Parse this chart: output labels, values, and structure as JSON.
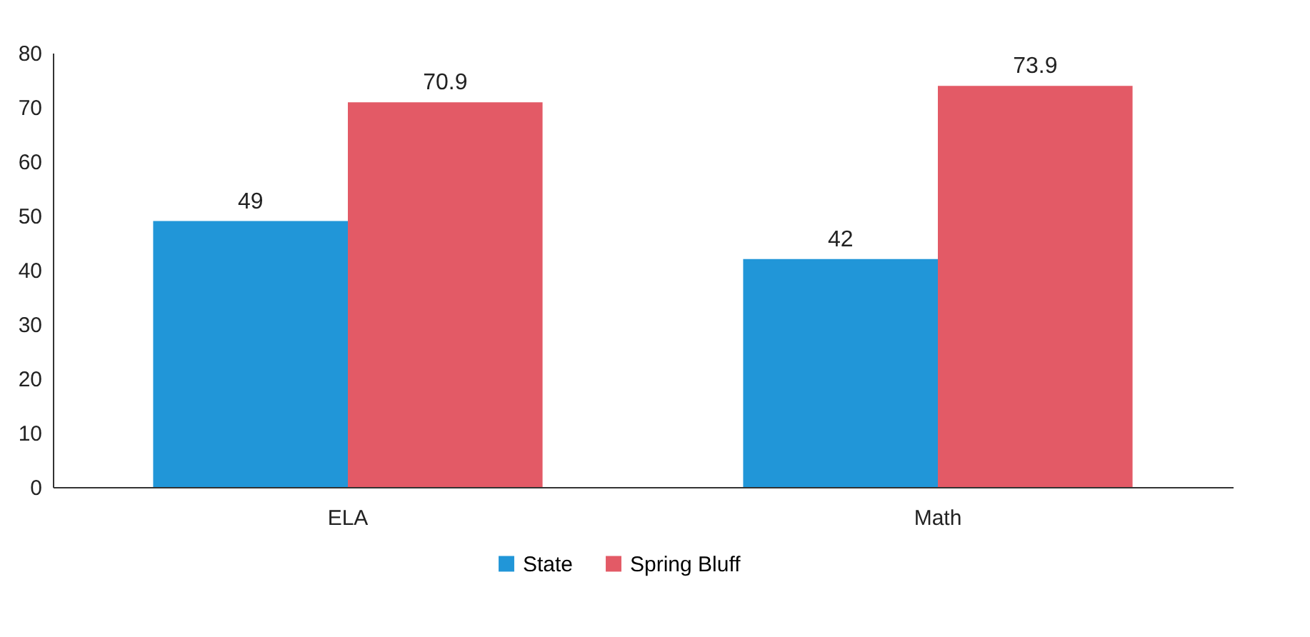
{
  "chart_data": {
    "type": "bar",
    "categories": [
      "ELA",
      "Math"
    ],
    "series": [
      {
        "name": "State",
        "color": "#2196d8",
        "values": [
          49,
          42
        ]
      },
      {
        "name": "Spring Bluff",
        "color": "#e35a66",
        "values": [
          70.9,
          73.9
        ]
      }
    ],
    "ylim": [
      0,
      80
    ],
    "yticks": [
      0,
      10,
      20,
      30,
      40,
      50,
      60,
      70,
      80
    ],
    "grid": false,
    "legend": "bottom",
    "data_labels": true
  }
}
